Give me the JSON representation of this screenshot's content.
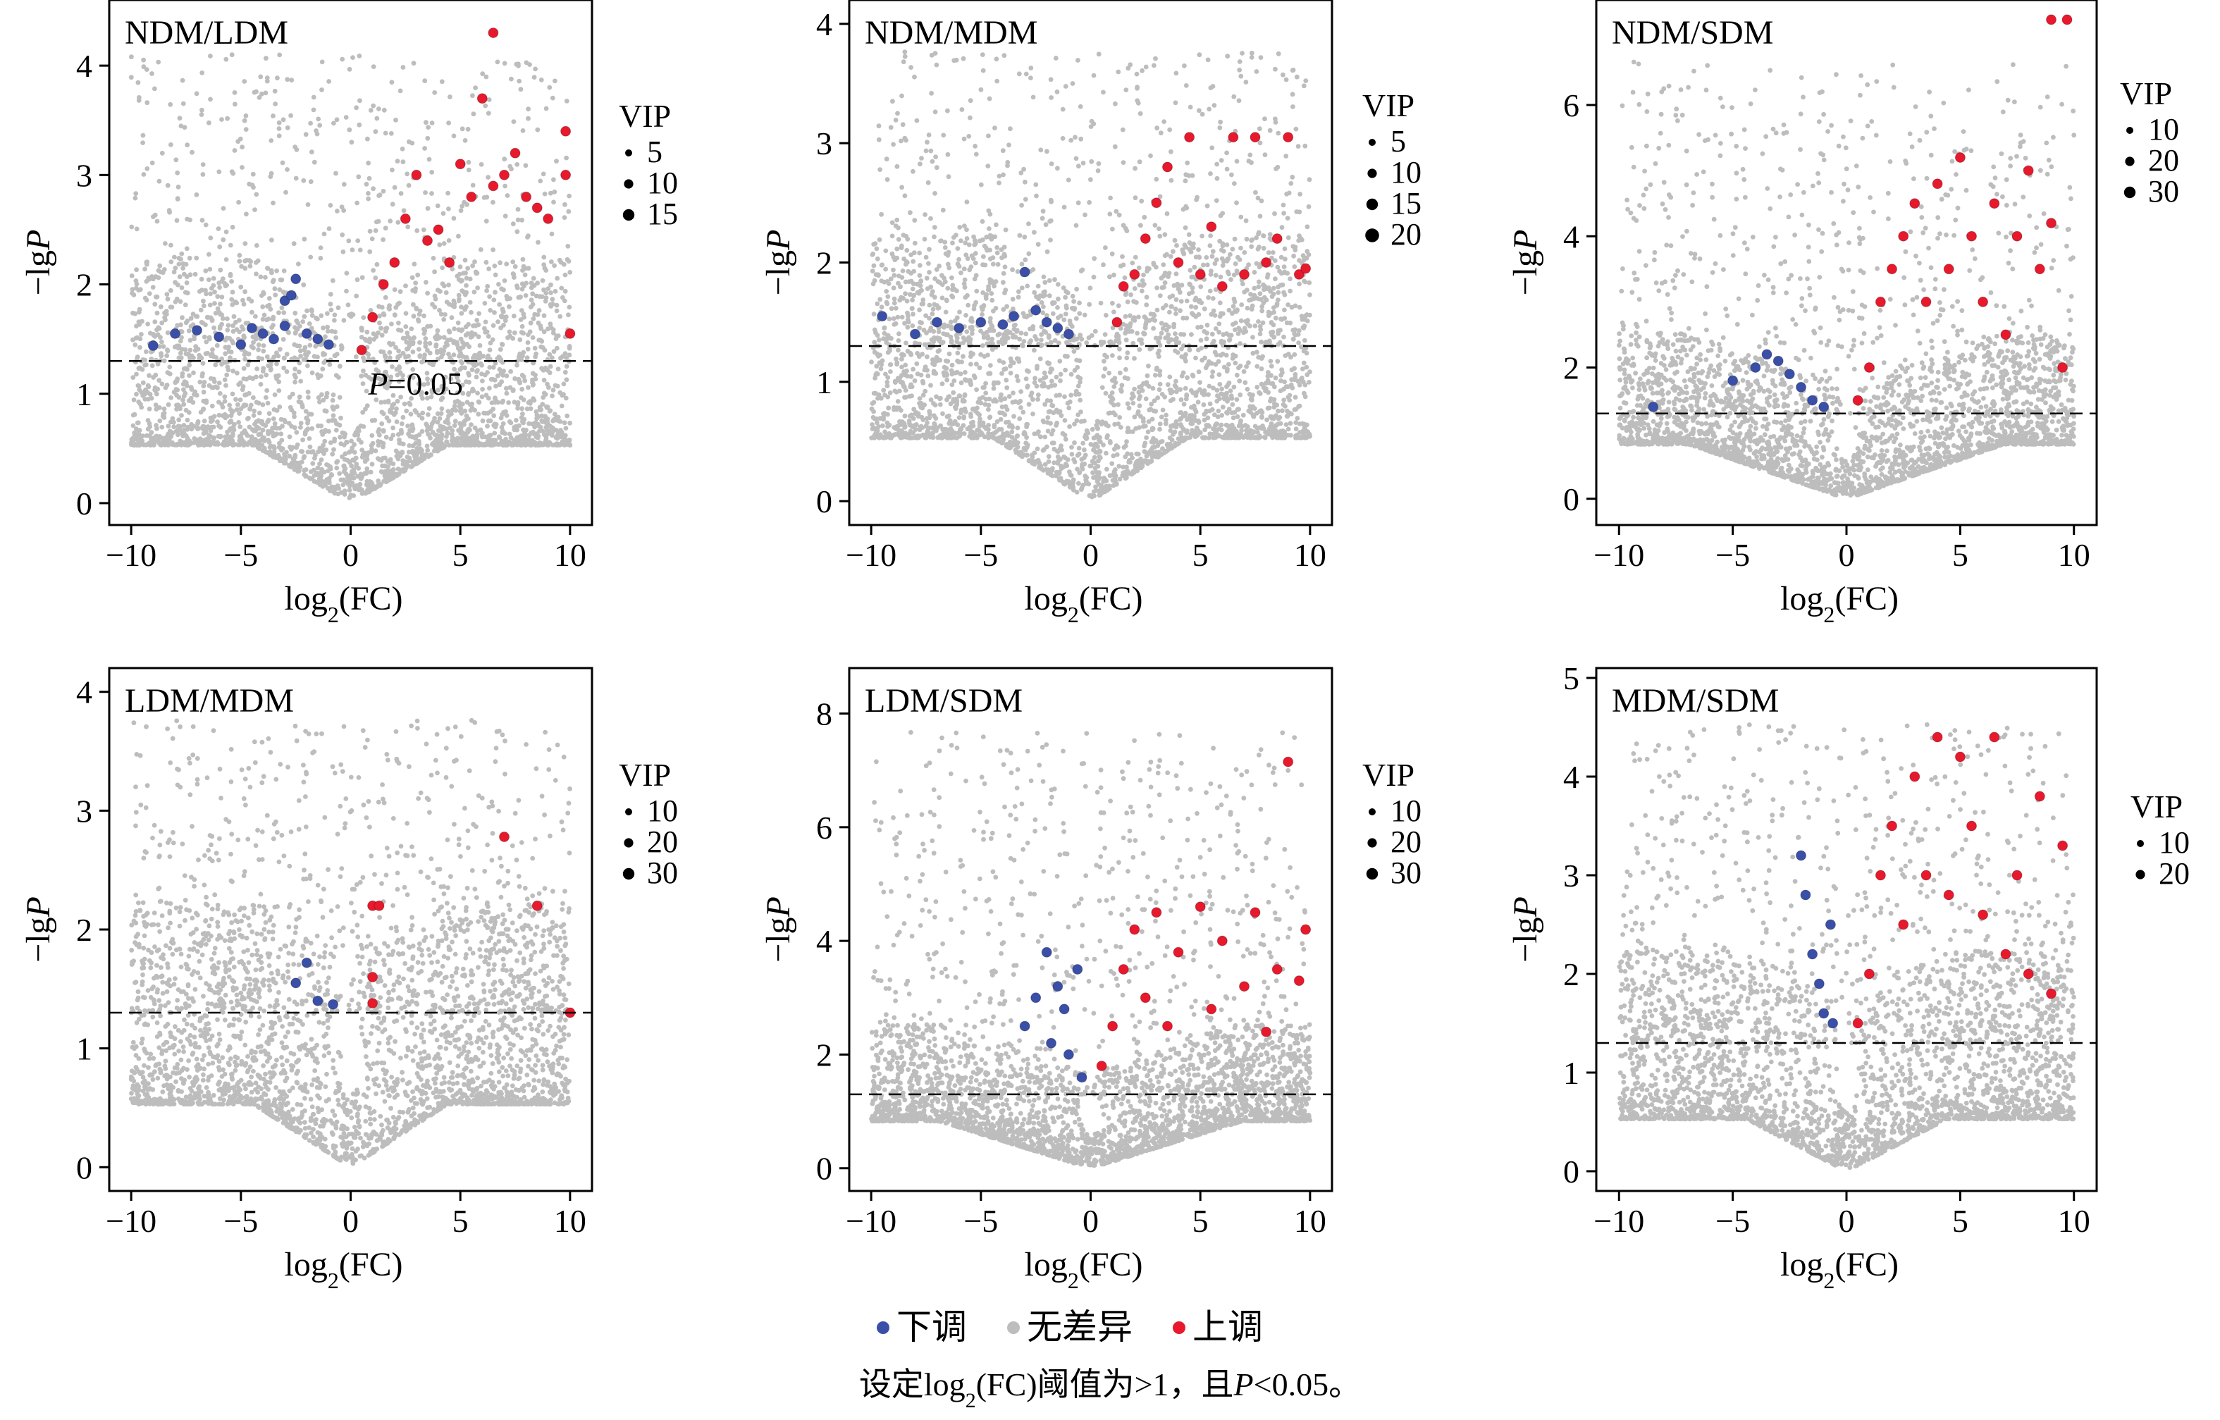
{
  "chart_data": [
    {
      "type": "scatter",
      "title": "NDM/LDM",
      "xlabel": "log₂(FC)",
      "ylabel": "−lgP",
      "xlim": [
        -11,
        11
      ],
      "ylim": [
        -0.2,
        4.6
      ],
      "xticks": [
        -10,
        -5,
        0,
        5,
        10
      ],
      "yticks": [
        0,
        1,
        2,
        3,
        4
      ],
      "threshold_y": 1.3,
      "threshold_label": "P=0.05",
      "vip_legend": {
        "title": "VIP",
        "values": [
          5,
          10,
          15
        ]
      },
      "series": [
        {
          "name": "下调",
          "color": "#3a4fa8",
          "points": [
            [
              -9,
              1.44
            ],
            [
              -8,
              1.55
            ],
            [
              -7,
              1.58
            ],
            [
              -6,
              1.52
            ],
            [
              -5,
              1.45
            ],
            [
              -4.5,
              1.6
            ],
            [
              -4,
              1.55
            ],
            [
              -3.5,
              1.5
            ],
            [
              -3,
              1.62
            ],
            [
              -3,
              1.85
            ],
            [
              -2.7,
              1.9
            ],
            [
              -2.5,
              2.05
            ],
            [
              -2,
              1.55
            ],
            [
              -1.5,
              1.5
            ],
            [
              -1,
              1.45
            ]
          ]
        },
        {
          "name": "上调",
          "color": "#e8192c",
          "points": [
            [
              0.5,
              1.4
            ],
            [
              1,
              1.7
            ],
            [
              1.5,
              2.0
            ],
            [
              2,
              2.2
            ],
            [
              2.5,
              2.6
            ],
            [
              3,
              3.0
            ],
            [
              3.5,
              2.4
            ],
            [
              4,
              2.5
            ],
            [
              4.5,
              2.2
            ],
            [
              5,
              3.1
            ],
            [
              5.5,
              2.8
            ],
            [
              6,
              3.7
            ],
            [
              6.5,
              2.9
            ],
            [
              6.5,
              4.3
            ],
            [
              7,
              3.0
            ],
            [
              7.5,
              3.2
            ],
            [
              8,
              2.8
            ],
            [
              8.5,
              2.7
            ],
            [
              9,
              2.6
            ],
            [
              9.8,
              3.4
            ],
            [
              9.8,
              3.0
            ],
            [
              10,
              1.55
            ]
          ]
        }
      ]
    },
    {
      "type": "scatter",
      "title": "NDM/MDM",
      "xlabel": "log₂(FC)",
      "ylabel": "−lgP",
      "xlim": [
        -11,
        11
      ],
      "ylim": [
        -0.2,
        4.2
      ],
      "xticks": [
        -10,
        -5,
        0,
        5,
        10
      ],
      "yticks": [
        0,
        1,
        2,
        3,
        4
      ],
      "threshold_y": 1.3,
      "vip_legend": {
        "title": "VIP",
        "values": [
          5,
          10,
          15,
          20
        ]
      },
      "series": [
        {
          "name": "下调",
          "color": "#3a4fa8",
          "points": [
            [
              -9.5,
              1.55
            ],
            [
              -8,
              1.4
            ],
            [
              -7,
              1.5
            ],
            [
              -6,
              1.45
            ],
            [
              -5,
              1.5
            ],
            [
              -4,
              1.48
            ],
            [
              -3.5,
              1.55
            ],
            [
              -3,
              1.92
            ],
            [
              -2.5,
              1.6
            ],
            [
              -2,
              1.5
            ],
            [
              -1.5,
              1.45
            ],
            [
              -1,
              1.4
            ]
          ]
        },
        {
          "name": "上调",
          "color": "#e8192c",
          "points": [
            [
              1.2,
              1.5
            ],
            [
              1.5,
              1.8
            ],
            [
              2,
              1.9
            ],
            [
              2.5,
              2.2
            ],
            [
              3,
              2.5
            ],
            [
              3.5,
              2.8
            ],
            [
              4,
              2.0
            ],
            [
              4.5,
              3.05
            ],
            [
              5,
              1.9
            ],
            [
              5.5,
              2.3
            ],
            [
              6,
              1.8
            ],
            [
              6.5,
              3.05
            ],
            [
              7,
              1.9
            ],
            [
              7.5,
              3.05
            ],
            [
              8,
              2.0
            ],
            [
              8.5,
              2.2
            ],
            [
              9,
              3.05
            ],
            [
              9.5,
              1.9
            ],
            [
              9.8,
              1.95
            ]
          ]
        }
      ]
    },
    {
      "type": "scatter",
      "title": "NDM/SDM",
      "xlabel": "log₂(FC)",
      "ylabel": "−lgP",
      "xlim": [
        -11,
        11
      ],
      "ylim": [
        -0.4,
        7.6
      ],
      "xticks": [
        -10,
        -5,
        0,
        5,
        10
      ],
      "yticks": [
        0,
        2,
        4,
        6
      ],
      "threshold_y": 1.3,
      "vip_legend": {
        "title": "VIP",
        "values": [
          10,
          20,
          30
        ]
      },
      "series": [
        {
          "name": "下调",
          "color": "#3a4fa8",
          "points": [
            [
              -8.5,
              1.4
            ],
            [
              -5,
              1.8
            ],
            [
              -4,
              2.0
            ],
            [
              -3.5,
              2.2
            ],
            [
              -3,
              2.1
            ],
            [
              -2.5,
              1.9
            ],
            [
              -2,
              1.7
            ],
            [
              -1.5,
              1.5
            ],
            [
              -1,
              1.4
            ]
          ]
        },
        {
          "name": "上调",
          "color": "#e8192c",
          "points": [
            [
              0.5,
              1.5
            ],
            [
              1,
              2.0
            ],
            [
              1.5,
              3.0
            ],
            [
              2,
              3.5
            ],
            [
              2.5,
              4.0
            ],
            [
              3,
              4.5
            ],
            [
              3.5,
              3.0
            ],
            [
              4,
              4.8
            ],
            [
              4.5,
              3.5
            ],
            [
              5,
              5.2
            ],
            [
              5.5,
              4.0
            ],
            [
              6,
              3.0
            ],
            [
              6.5,
              4.5
            ],
            [
              7,
              2.5
            ],
            [
              7.5,
              4.0
            ],
            [
              8,
              5.0
            ],
            [
              8.5,
              3.5
            ],
            [
              9,
              4.2
            ],
            [
              9.5,
              2.0
            ],
            [
              9,
              7.3
            ],
            [
              9.7,
              7.3
            ]
          ]
        }
      ]
    },
    {
      "type": "scatter",
      "title": "LDM/MDM",
      "xlabel": "log₂(FC)",
      "ylabel": "−lgP",
      "xlim": [
        -11,
        11
      ],
      "ylim": [
        -0.2,
        4.2
      ],
      "xticks": [
        -10,
        -5,
        0,
        5,
        10
      ],
      "yticks": [
        0,
        1,
        2,
        3,
        4
      ],
      "threshold_y": 1.3,
      "vip_legend": {
        "title": "VIP",
        "values": [
          10,
          20,
          30
        ]
      },
      "series": [
        {
          "name": "下调",
          "color": "#3a4fa8",
          "points": [
            [
              -2.5,
              1.55
            ],
            [
              -2,
              1.72
            ],
            [
              -1.5,
              1.4
            ],
            [
              -0.8,
              1.37
            ]
          ]
        },
        {
          "name": "上调",
          "color": "#e8192c",
          "points": [
            [
              1,
              1.38
            ],
            [
              1,
              1.6
            ],
            [
              1,
              2.2
            ],
            [
              1.3,
              2.2
            ],
            [
              7,
              2.78
            ],
            [
              8.5,
              2.2
            ],
            [
              10,
              1.3
            ]
          ]
        }
      ]
    },
    {
      "type": "scatter",
      "title": "LDM/SDM",
      "xlabel": "log₂(FC)",
      "ylabel": "−lgP",
      "xlim": [
        -11,
        11
      ],
      "ylim": [
        -0.4,
        8.8
      ],
      "xticks": [
        -10,
        -5,
        0,
        5,
        10
      ],
      "yticks": [
        0,
        2,
        4,
        6,
        8
      ],
      "threshold_y": 1.3,
      "vip_legend": {
        "title": "VIP",
        "values": [
          10,
          20,
          30
        ]
      },
      "series": [
        {
          "name": "下调",
          "color": "#3a4fa8",
          "points": [
            [
              -3,
              2.5
            ],
            [
              -2.5,
              3.0
            ],
            [
              -2,
              3.8
            ],
            [
              -1.8,
              2.2
            ],
            [
              -1.5,
              3.2
            ],
            [
              -1.2,
              2.8
            ],
            [
              -1,
              2.0
            ],
            [
              -0.6,
              3.5
            ],
            [
              -0.4,
              1.6
            ]
          ]
        },
        {
          "name": "上调",
          "color": "#e8192c",
          "points": [
            [
              0.5,
              1.8
            ],
            [
              1,
              2.5
            ],
            [
              1.5,
              3.5
            ],
            [
              2,
              4.2
            ],
            [
              2.5,
              3.0
            ],
            [
              3,
              4.5
            ],
            [
              3.5,
              2.5
            ],
            [
              4,
              3.8
            ],
            [
              5,
              4.6
            ],
            [
              5.5,
              2.8
            ],
            [
              6,
              4.0
            ],
            [
              7,
              3.2
            ],
            [
              7.5,
              4.5
            ],
            [
              8,
              2.4
            ],
            [
              8.5,
              3.5
            ],
            [
              9,
              7.15
            ],
            [
              9.5,
              3.3
            ],
            [
              9.8,
              4.2
            ]
          ]
        }
      ]
    },
    {
      "type": "scatter",
      "title": "MDM/SDM",
      "xlabel": "log₂(FC)",
      "ylabel": "−lgP",
      "xlim": [
        -11,
        11
      ],
      "ylim": [
        -0.2,
        5.1
      ],
      "xticks": [
        -10,
        -5,
        0,
        5,
        10
      ],
      "yticks": [
        0,
        1,
        2,
        3,
        4,
        5
      ],
      "threshold_y": 1.3,
      "vip_legend": {
        "title": "VIP",
        "values": [
          10,
          20
        ]
      },
      "series": [
        {
          "name": "下调",
          "color": "#3a4fa8",
          "points": [
            [
              -2,
              3.2
            ],
            [
              -1.8,
              2.8
            ],
            [
              -1.5,
              2.2
            ],
            [
              -1.2,
              1.9
            ],
            [
              -1,
              1.6
            ],
            [
              -0.7,
              2.5
            ],
            [
              -0.6,
              1.5
            ]
          ]
        },
        {
          "name": "上调",
          "color": "#e8192c",
          "points": [
            [
              0.5,
              1.5
            ],
            [
              1,
              2.0
            ],
            [
              1.5,
              3.0
            ],
            [
              2,
              3.5
            ],
            [
              2.5,
              2.5
            ],
            [
              3,
              4.0
            ],
            [
              3.5,
              3.0
            ],
            [
              4,
              4.4
            ],
            [
              4.5,
              2.8
            ],
            [
              5,
              4.2
            ],
            [
              5.5,
              3.5
            ],
            [
              6,
              2.6
            ],
            [
              6.5,
              4.4
            ],
            [
              7,
              2.2
            ],
            [
              7.5,
              3.0
            ],
            [
              8,
              2.0
            ],
            [
              8.5,
              3.8
            ],
            [
              9,
              1.8
            ],
            [
              9.5,
              3.3
            ]
          ]
        }
      ]
    }
  ],
  "legend": {
    "items": [
      {
        "label": "下调",
        "color": "#3a4fa8"
      },
      {
        "label": "无差异",
        "color": "#bdbdbd"
      },
      {
        "label": "上调",
        "color": "#e8192c"
      }
    ]
  },
  "note": "设定log₂(FC)阈值为>1，且P<0.05。"
}
